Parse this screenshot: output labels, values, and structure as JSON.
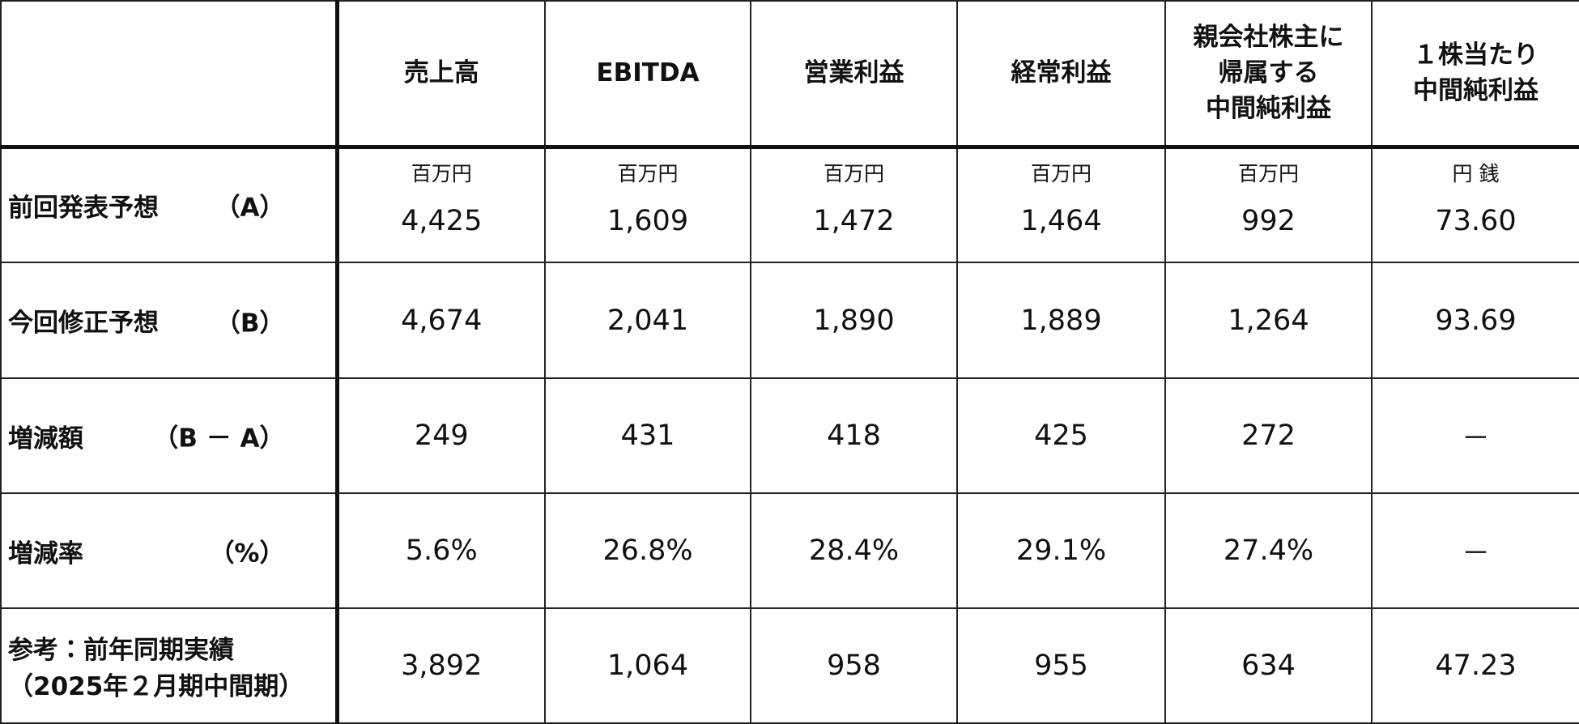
{
  "table": {
    "columns": [
      [
        "売上高"
      ],
      [
        "EBITDA"
      ],
      [
        "営業利益"
      ],
      [
        "経常利益"
      ],
      [
        "親会社株主に",
        "帰属する",
        "中間純利益"
      ],
      [
        "１株当たり",
        "中間純利益"
      ]
    ],
    "rows": [
      {
        "label": [
          "前回発表予想"
        ],
        "tag": "（A）",
        "units": [
          "百万円",
          "百万円",
          "百万円",
          "百万円",
          "百万円",
          "円 銭"
        ],
        "cells": [
          "4,425",
          "1,609",
          "1,472",
          "1,464",
          "992",
          "73.60"
        ]
      },
      {
        "label": [
          "今回修正予想"
        ],
        "tag": "（B）",
        "cells": [
          "4,674",
          "2,041",
          "1,890",
          "1,889",
          "1,264",
          "93.69"
        ]
      },
      {
        "label": [
          "増減額"
        ],
        "tag": "（B － A）",
        "cells": [
          "249",
          "431",
          "418",
          "425",
          "272",
          "－"
        ]
      },
      {
        "label": [
          "増減率"
        ],
        "tag": "（%）",
        "cells": [
          "5.6%",
          "26.8%",
          "28.4%",
          "29.1%",
          "27.4%",
          "－"
        ]
      },
      {
        "label": [
          "参考：前年同期実績",
          "（2025年２月期中間期）"
        ],
        "cells": [
          "3,892",
          "1,064",
          "958",
          "955",
          "634",
          "47.23"
        ]
      }
    ]
  }
}
